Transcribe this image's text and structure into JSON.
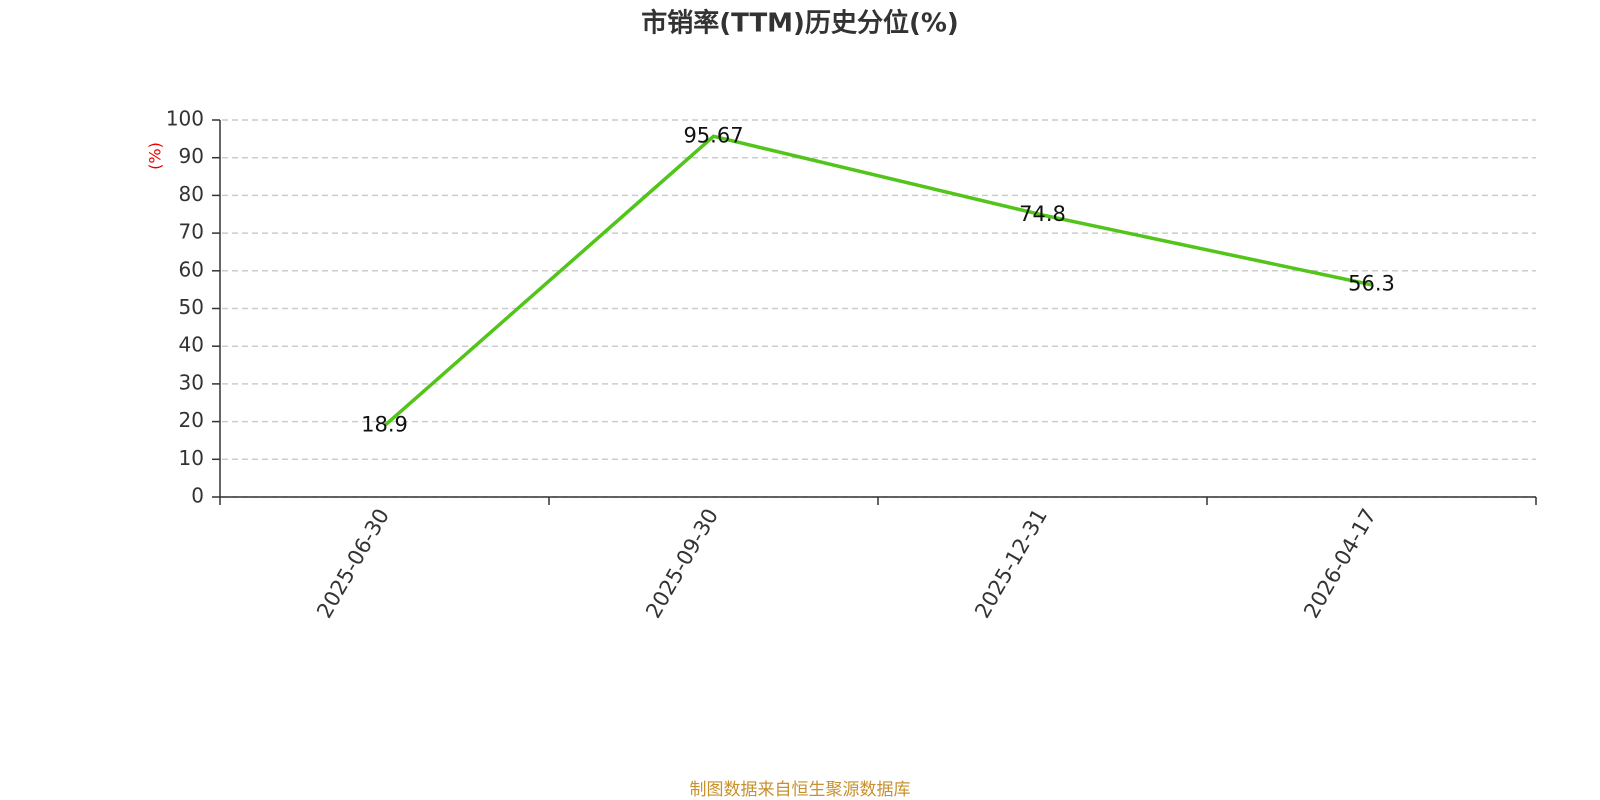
{
  "chart_data": {
    "type": "line",
    "title": "市销率(TTM)历史分位(%)",
    "y_label": "(%)",
    "source": "制图数据来自恒生聚源数据库",
    "categories": [
      "2025-06-30",
      "2025-09-30",
      "2025-12-31",
      "2026-04-17"
    ],
    "values": [
      18.9,
      95.67,
      74.8,
      56.3
    ],
    "color": "#52c41a",
    "ylim": [
      0,
      100
    ],
    "yticks": [
      0,
      10,
      20,
      30,
      40,
      50,
      60,
      70,
      80,
      90,
      100
    ],
    "grid": true
  }
}
